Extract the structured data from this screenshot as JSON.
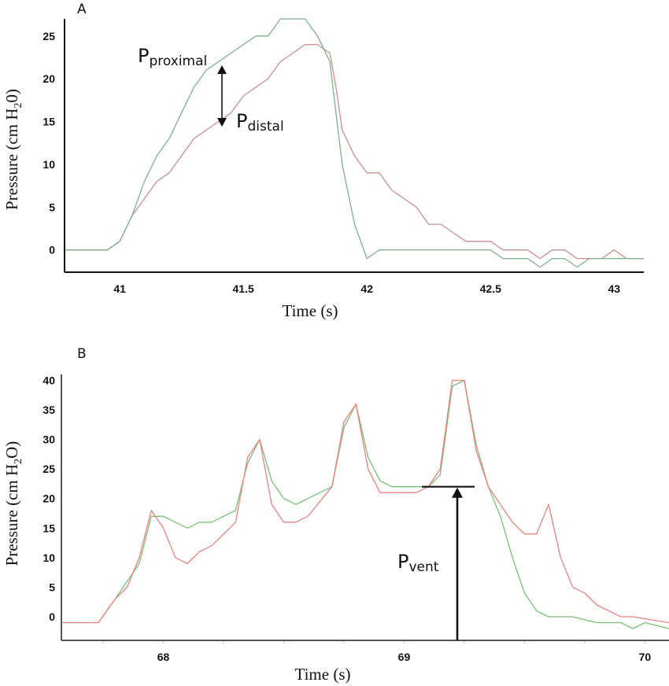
{
  "chart_data": [
    {
      "type": "line",
      "panel_label": "A",
      "title": "",
      "xlabel": "Time (s)",
      "ylabel_main": "Pressure (cm H",
      "ylabel_sub": "2",
      "ylabel_tail": "0)",
      "xlim": [
        40.78,
        43.12
      ],
      "ylim": [
        -2.6,
        27.0
      ],
      "x_ticks": [
        41,
        41.5,
        42,
        42.5,
        43
      ],
      "x_tick_labels": [
        "41",
        "41.5",
        "42",
        "42.5",
        "43"
      ],
      "y_ticks": [
        0,
        5,
        10,
        15,
        20,
        25
      ],
      "y_tick_labels": [
        "0",
        "5",
        "10",
        "15",
        "20",
        "25"
      ],
      "grid": false,
      "series": [
        {
          "name": "proximal",
          "color": "#7fb08a",
          "x": [
            40.78,
            40.95,
            41.0,
            41.05,
            41.1,
            41.15,
            41.2,
            41.25,
            41.3,
            41.35,
            41.4,
            41.45,
            41.5,
            41.55,
            41.6,
            41.65,
            41.7,
            41.75,
            41.8,
            41.85,
            41.875,
            41.9,
            41.95,
            42.0,
            42.05,
            42.1,
            42.15,
            42.2,
            42.25,
            42.3,
            42.35,
            42.4,
            42.45,
            42.5,
            42.55,
            42.6,
            42.65,
            42.7,
            42.75,
            42.8,
            42.85,
            42.9,
            42.95,
            43.0,
            43.05,
            43.12
          ],
          "y": [
            0,
            0,
            1,
            4,
            8,
            11,
            13,
            16,
            19,
            21,
            22,
            23,
            24,
            25,
            25,
            27,
            27,
            27,
            25,
            22,
            16,
            10,
            3,
            -1,
            0,
            0,
            0,
            0,
            0,
            0,
            0,
            0,
            0,
            0,
            -1,
            -1,
            -1,
            -2,
            -1,
            -1,
            -2,
            -1,
            -1,
            -1,
            -1,
            -1
          ]
        },
        {
          "name": "distal",
          "color": "#c98e8e",
          "x": [
            40.78,
            40.95,
            41.0,
            41.05,
            41.1,
            41.15,
            41.2,
            41.25,
            41.3,
            41.35,
            41.4,
            41.45,
            41.5,
            41.55,
            41.6,
            41.65,
            41.7,
            41.75,
            41.8,
            41.85,
            41.875,
            41.9,
            41.95,
            42.0,
            42.05,
            42.1,
            42.15,
            42.2,
            42.25,
            42.3,
            42.35,
            42.4,
            42.45,
            42.5,
            42.55,
            42.6,
            42.65,
            42.7,
            42.75,
            42.8,
            42.85,
            42.9,
            42.95,
            43.0,
            43.05,
            43.12
          ],
          "y": [
            0,
            0,
            1,
            4,
            6,
            8,
            9,
            11,
            13,
            14,
            15,
            16,
            18,
            19,
            20,
            22,
            23,
            24,
            24,
            23,
            19,
            14,
            11,
            9,
            9,
            7,
            6,
            5,
            3,
            3,
            2,
            1,
            1,
            1,
            0,
            0,
            0,
            -1,
            0,
            0,
            -1,
            -1,
            -1,
            0,
            -1,
            -1
          ]
        }
      ],
      "annotations": [
        {
          "main": "P",
          "sub": "proximal"
        },
        {
          "main": "P",
          "sub": "distal"
        }
      ]
    },
    {
      "type": "line",
      "panel_label": "B",
      "title": "",
      "xlabel": "Time (s)",
      "ylabel_main": "Pressure (cm H",
      "ylabel_sub": "2",
      "ylabel_tail": "O)",
      "xlim": [
        67.58,
        70.1
      ],
      "ylim": [
        -4.0,
        41.0
      ],
      "x_ticks": [
        68,
        69,
        70
      ],
      "x_tick_labels": [
        "68",
        "69",
        "70"
      ],
      "x_minor_ticks": [
        67.75,
        68.25,
        68.5,
        68.75,
        69.25,
        69.5,
        69.75
      ],
      "y_ticks": [
        0,
        5,
        10,
        15,
        20,
        25,
        30,
        35,
        40
      ],
      "y_tick_labels": [
        "0",
        "5",
        "10",
        "15",
        "20",
        "25",
        "30",
        "35",
        "40"
      ],
      "grid": false,
      "series": [
        {
          "name": "proximal",
          "color": "#77c177",
          "x": [
            67.58,
            67.73,
            67.8,
            67.85,
            67.9,
            67.95,
            68.0,
            68.05,
            68.1,
            68.15,
            68.2,
            68.3,
            68.35,
            68.4,
            68.45,
            68.5,
            68.55,
            68.6,
            68.7,
            68.75,
            68.8,
            68.85,
            68.9,
            68.95,
            69.0,
            69.05,
            69.1,
            69.15,
            69.2,
            69.25,
            69.3,
            69.35,
            69.4,
            69.45,
            69.5,
            69.55,
            69.6,
            69.7,
            69.8,
            69.9,
            69.95,
            70.0,
            70.1
          ],
          "y": [
            -1,
            -1,
            3,
            6,
            9,
            17,
            17,
            16,
            15,
            16,
            16,
            18,
            26,
            30,
            23,
            20,
            19,
            20,
            22,
            32,
            36,
            27,
            23,
            22,
            22,
            22,
            22,
            24,
            39,
            40,
            29,
            22,
            17,
            10,
            4,
            1,
            0,
            0,
            -1,
            -1,
            -2,
            -1,
            -2
          ]
        },
        {
          "name": "distal",
          "color": "#f08080",
          "x": [
            67.58,
            67.73,
            67.8,
            67.85,
            67.9,
            67.95,
            68.0,
            68.05,
            68.1,
            68.15,
            68.2,
            68.3,
            68.35,
            68.4,
            68.45,
            68.5,
            68.55,
            68.6,
            68.7,
            68.75,
            68.8,
            68.85,
            68.9,
            68.95,
            69.0,
            69.05,
            69.1,
            69.15,
            69.2,
            69.25,
            69.3,
            69.35,
            69.4,
            69.45,
            69.5,
            69.55,
            69.6,
            69.65,
            69.7,
            69.75,
            69.8,
            69.85,
            69.9,
            69.95,
            70.1
          ],
          "y": [
            -1,
            -1,
            3,
            5,
            10,
            18,
            15,
            10,
            9,
            11,
            12,
            16,
            27,
            30,
            19,
            16,
            16,
            17,
            22,
            33,
            36,
            25,
            21,
            21,
            21,
            21,
            22,
            25,
            40,
            40,
            28,
            22,
            19,
            16,
            14,
            14,
            19,
            10,
            5,
            4,
            2,
            1,
            0,
            0,
            -1
          ]
        }
      ],
      "annotations": [
        {
          "main": "P",
          "sub": "vent",
          "level": 22
        }
      ]
    }
  ]
}
